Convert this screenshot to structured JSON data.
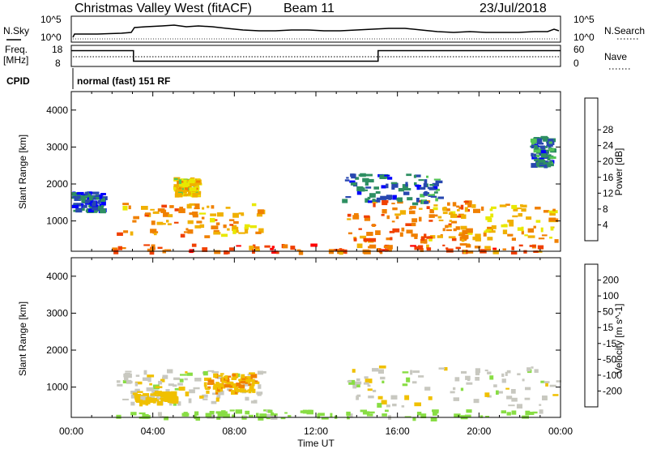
{
  "header": {
    "title": "Christmas Valley West (fitACF)",
    "beam": "Beam 11",
    "date": "23/Jul/2018"
  },
  "sky_panel": {
    "left_label": "N.Sky",
    "right_label": "N.Search",
    "left_ticks": [
      "10^5",
      "10^0"
    ],
    "right_ticks": [
      "10^5",
      "10^0"
    ]
  },
  "freq_panel": {
    "left_label": "Freq.",
    "left_unit": "[MHz]",
    "right_label": "Nave",
    "left_ticks": [
      "18",
      "8"
    ],
    "right_ticks": [
      "60",
      "0"
    ],
    "freq_steps": [
      {
        "start_hour": 0,
        "end_hour": 3.05,
        "mhz": 15.5
      },
      {
        "start_hour": 3.05,
        "end_hour": 15.05,
        "mhz": 10.5
      },
      {
        "start_hour": 15.05,
        "end_hour": 24,
        "mhz": 15.5
      }
    ]
  },
  "cpid": {
    "label": "CPID",
    "value": "normal (fast) 151 RF"
  },
  "chart_data": [
    {
      "type": "heatmap",
      "title": "Power",
      "xlabel": "Time UT",
      "ylabel": "Slant Range [km]",
      "x_range_hours": [
        0,
        24
      ],
      "y_range_km": [
        180,
        4500
      ],
      "x_ticks": [
        "00:00",
        "04:00",
        "08:00",
        "12:00",
        "16:00",
        "20:00",
        "00:00"
      ],
      "y_ticks": [
        "1000",
        "2000",
        "3000",
        "4000"
      ],
      "colorbar": {
        "label": "Power [dB]",
        "ticks": [
          "4",
          "8",
          "12",
          "16",
          "20",
          "24",
          "28"
        ],
        "colors": [
          "#0000ff",
          "#2848b0",
          "#2e8f62",
          "#55c555",
          "#e8e800",
          "#f0b000",
          "#f08000",
          "#f04000",
          "#ff0000"
        ]
      },
      "regions": [
        {
          "t0": 2.2,
          "t1": 9.3,
          "r0": 600,
          "r1": 1500,
          "value_db": 24
        },
        {
          "t0": 5.0,
          "t1": 6.2,
          "r0": 1700,
          "r1": 2200,
          "value_db": 20
        },
        {
          "t0": 13.5,
          "t1": 19.5,
          "r0": 500,
          "r1": 1600,
          "value_db": 26
        },
        {
          "t0": 17.5,
          "t1": 23.8,
          "r0": 500,
          "r1": 1500,
          "value_db": 22
        },
        {
          "t0": 2.0,
          "t1": 23.0,
          "r0": 180,
          "r1": 400,
          "value_db": 28
        },
        {
          "t0": 0.0,
          "t1": 1.5,
          "r0": 1300,
          "r1": 1800,
          "value_db": 6
        },
        {
          "t0": 13.2,
          "t1": 18.0,
          "r0": 1500,
          "r1": 2300,
          "value_db": 8
        },
        {
          "t0": 22.5,
          "t1": 23.5,
          "r0": 2500,
          "r1": 3300,
          "value_db": 8
        }
      ]
    },
    {
      "type": "heatmap",
      "title": "Velocity",
      "xlabel": "Time UT",
      "ylabel": "Slant Range [km]",
      "x_range_hours": [
        0,
        24
      ],
      "y_range_km": [
        180,
        4500
      ],
      "x_ticks": [
        "00:00",
        "04:00",
        "08:00",
        "12:00",
        "16:00",
        "20:00",
        "00:00"
      ],
      "y_ticks": [
        "1000",
        "2000",
        "3000",
        "4000"
      ],
      "colorbar": {
        "label": "Velocity [m s^-1]",
        "ticks": [
          "200",
          "100",
          "50",
          "15",
          "-15",
          "-50",
          "-100",
          "-200"
        ],
        "colors": [
          "#2020c0",
          "#2e8f62",
          "#3fb03f",
          "#88dd44",
          "#c8c8c0",
          "#f0c000",
          "#f08000",
          "#f04000",
          "#ff0000"
        ]
      },
      "regions": [
        {
          "t0": 2.2,
          "t1": 9.3,
          "r0": 600,
          "r1": 1500,
          "value_ms": 0
        },
        {
          "t0": 6.5,
          "t1": 9.0,
          "r0": 900,
          "r1": 1400,
          "value_ms": -40
        },
        {
          "t0": 3.0,
          "t1": 5.0,
          "r0": 600,
          "r1": 900,
          "value_ms": -30
        },
        {
          "t0": 13.5,
          "t1": 23.8,
          "r0": 500,
          "r1": 1600,
          "value_ms": 0
        },
        {
          "t0": 2.0,
          "t1": 23.0,
          "r0": 180,
          "r1": 400,
          "value_ms": 30
        }
      ]
    }
  ]
}
